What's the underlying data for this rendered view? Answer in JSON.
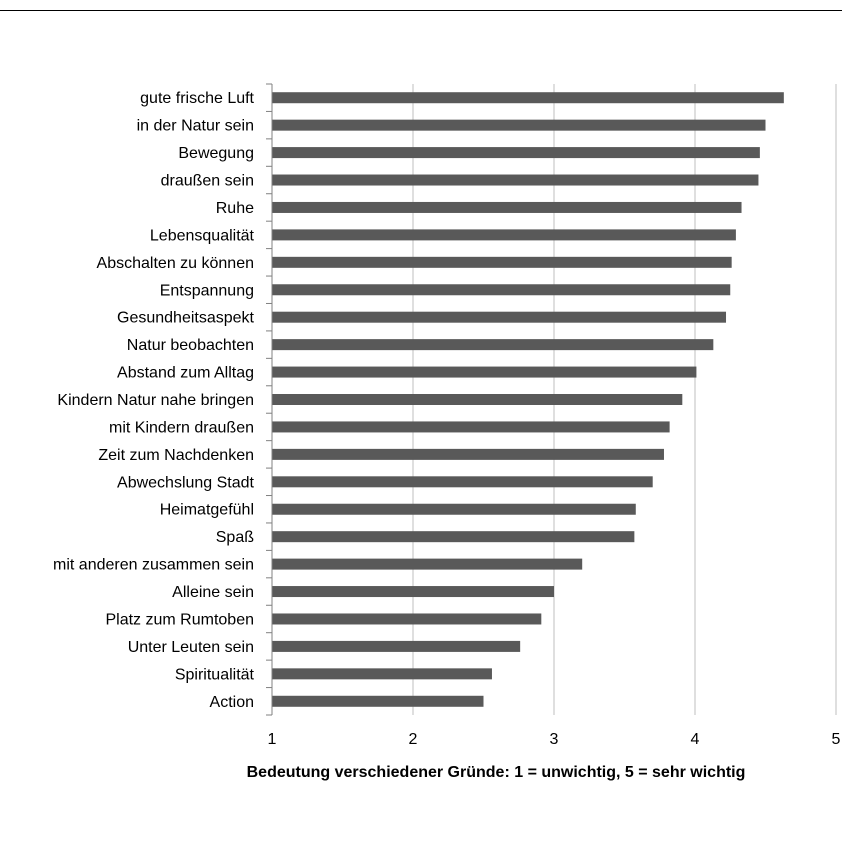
{
  "chart_data": {
    "type": "bar",
    "orientation": "horizontal",
    "categories": [
      "gute frische Luft",
      "in der Natur sein",
      "Bewegung",
      "draußen sein",
      "Ruhe",
      "Lebensqualität",
      "Abschalten zu können",
      "Entspannung",
      "Gesundheitsaspekt",
      "Natur beobachten",
      "Abstand zum Alltag",
      "Kindern Natur nahe bringen",
      "mit Kindern draußen",
      "Zeit zum Nachdenken",
      "Abwechslung Stadt",
      "Heimatgefühl",
      "Spaß",
      "mit anderen zusammen sein",
      "Alleine sein",
      "Platz zum Rumtoben",
      "Unter Leuten sein",
      "Spiritualität",
      "Action"
    ],
    "values": [
      4.63,
      4.5,
      4.46,
      4.45,
      4.33,
      4.29,
      4.26,
      4.25,
      4.22,
      4.13,
      4.01,
      3.91,
      3.82,
      3.78,
      3.7,
      3.58,
      3.57,
      3.2,
      3.0,
      2.91,
      2.76,
      2.56,
      2.5
    ],
    "xlabel": "Bedeutung verschiedener Gründe: 1 = unwichtig, 5 = sehr wichtig",
    "ylabel": "",
    "title": "",
    "xlim": [
      1,
      5
    ],
    "xticks": [
      "1",
      "2",
      "3",
      "4",
      "5"
    ],
    "grid": "vertical",
    "bar_color": "#595959",
    "grid_color": "#bfbfbf",
    "axis_color": "#808080"
  }
}
